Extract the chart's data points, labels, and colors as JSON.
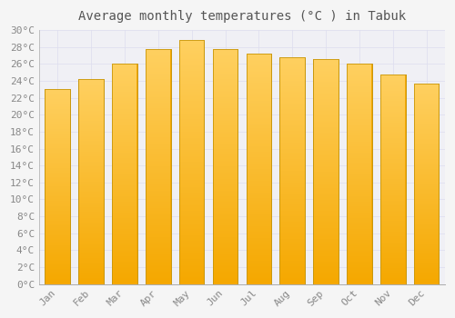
{
  "title": "Average monthly temperatures (°C ) in Tabuk",
  "months": [
    "Jan",
    "Feb",
    "Mar",
    "Apr",
    "May",
    "Jun",
    "Jul",
    "Aug",
    "Sep",
    "Oct",
    "Nov",
    "Dec"
  ],
  "values": [
    23.0,
    24.2,
    26.0,
    27.8,
    28.8,
    27.8,
    27.2,
    26.8,
    26.6,
    26.0,
    24.8,
    23.7
  ],
  "bar_color_light": "#FFD060",
  "bar_color_dark": "#F5A800",
  "bar_edge_color": "#C8960A",
  "ylim": [
    0,
    30
  ],
  "ytick_step": 2,
  "background_color": "#f5f5f5",
  "plot_bg_color": "#f0f0f5",
  "grid_color": "#ddddee",
  "title_fontsize": 10,
  "tick_fontsize": 8,
  "font_family": "monospace"
}
